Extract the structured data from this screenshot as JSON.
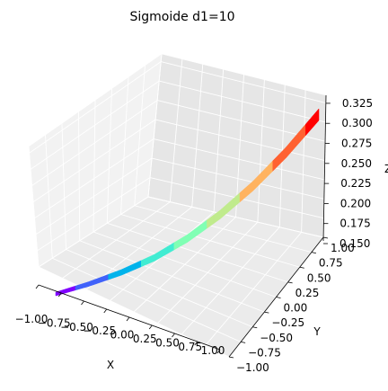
{
  "chart_data": {
    "type": "surface",
    "title": "Sigmoide d1=10",
    "xlabel": "X",
    "ylabel": "Y",
    "zlabel": "Z",
    "xlim": [
      -1.0,
      1.0
    ],
    "ylim": [
      -1.0,
      1.0
    ],
    "zlim": [
      0.15,
      0.335
    ],
    "xticks": [
      "−1.00",
      "−0.75",
      "−0.50",
      "−0.25",
      "0.00",
      "0.25",
      "0.50",
      "0.75",
      "1.00"
    ],
    "yticks": [
      "−1.00",
      "−0.75",
      "−0.50",
      "−0.25",
      "0.00",
      "0.25",
      "0.50",
      "0.75",
      "1.00"
    ],
    "zticks": [
      "0.150",
      "0.175",
      "0.200",
      "0.225",
      "0.250",
      "0.275",
      "0.300",
      "0.325"
    ],
    "colormap": [
      "#8000ff",
      "#4062fa",
      "#01b3eb",
      "#41ecd2",
      "#80ffb4",
      "#c0eb8d",
      "#ffb360",
      "#ff6131",
      "#ff0000"
    ],
    "grid": true,
    "surface_profile": {
      "x": [
        -1.0,
        -0.75,
        -0.5,
        -0.25,
        0.0,
        0.25,
        0.5,
        0.75,
        1.0
      ],
      "z": [
        0.148,
        0.158,
        0.17,
        0.185,
        0.205,
        0.23,
        0.26,
        0.295,
        0.335
      ]
    }
  }
}
